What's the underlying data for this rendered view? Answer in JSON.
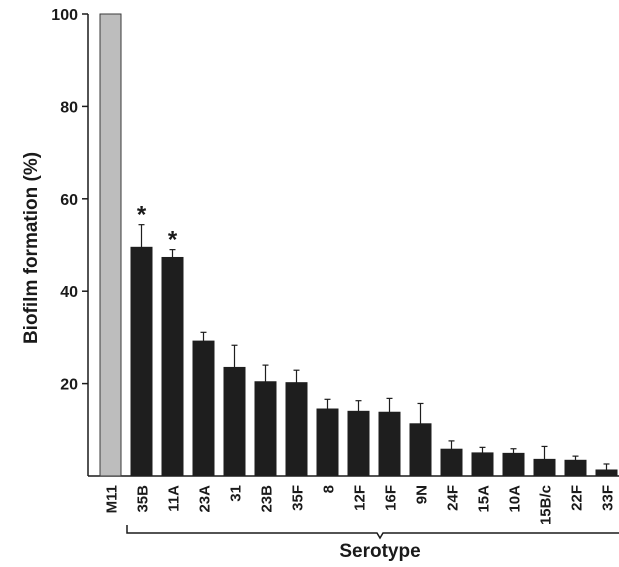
{
  "chart_data": {
    "type": "bar",
    "ylabel": "Biofilm formation (%)",
    "xlabel": "Serotype",
    "ylim": [
      0,
      100
    ],
    "yticks": [
      "20",
      "40",
      "60",
      "80",
      "100"
    ],
    "categories": [
      "M11",
      "35B",
      "11A",
      "23A",
      "31",
      "23B",
      "35F",
      "8",
      "12F",
      "16F",
      "9N",
      "24F",
      "15A",
      "10A",
      "15B/c",
      "22F",
      "33F"
    ],
    "values": [
      100,
      49.5,
      47.3,
      29.2,
      23.5,
      20.4,
      20.2,
      14.5,
      14.0,
      13.8,
      11.3,
      5.8,
      5.0,
      4.9,
      3.6,
      3.4,
      1.3
    ],
    "errors": [
      0,
      4.9,
      1.7,
      1.9,
      4.8,
      3.6,
      2.7,
      2.1,
      2.3,
      3.0,
      4.4,
      1.8,
      1.2,
      1.0,
      2.8,
      0.9,
      1.3
    ],
    "significance": [
      "",
      "*",
      "*",
      "",
      "",
      "",
      "",
      "",
      "",
      "",
      "",
      "",
      "",
      "",
      "",
      "",
      ""
    ],
    "colors": {
      "reference_bar": "#bdbdbd",
      "bars": "#1e1e1e",
      "axis": "#1a1a1a"
    },
    "grid": false,
    "legend": "none"
  }
}
